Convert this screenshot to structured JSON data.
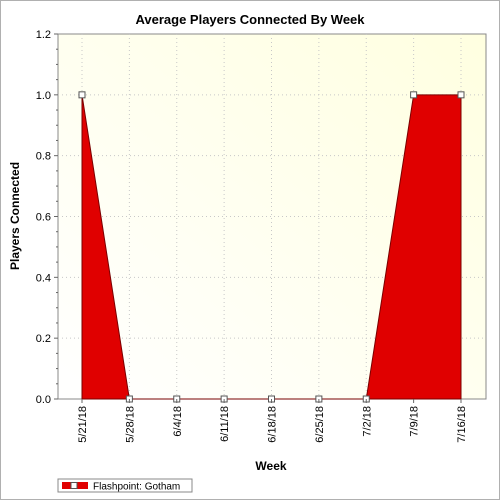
{
  "chart_data": {
    "type": "area",
    "title": "Average Players Connected By Week",
    "xlabel": "Week",
    "ylabel": "Players Connected",
    "categories": [
      "5/21/18",
      "5/28/18",
      "6/4/18",
      "6/11/18",
      "6/18/18",
      "6/25/18",
      "7/2/18",
      "7/9/18",
      "7/16/18"
    ],
    "series": [
      {
        "name": "Flashpoint: Gotham",
        "values": [
          1.0,
          0.0,
          0.0,
          0.0,
          0.0,
          0.0,
          0.0,
          1.0,
          1.0
        ],
        "color": "#e00000"
      }
    ],
    "yticks": [
      "0.0",
      "0.2",
      "0.4",
      "0.6",
      "0.8",
      "1.0",
      "1.2"
    ],
    "ylim": [
      0,
      1.2
    ],
    "grid": true,
    "legend_position": "bottom-left",
    "background_gradient": [
      "#ffffff",
      "#ffffe0"
    ]
  }
}
